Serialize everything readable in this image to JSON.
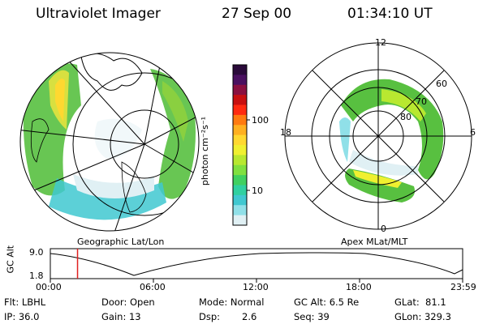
{
  "header": {
    "title": "Ultraviolet Imager",
    "date": "27 Sep 00",
    "time": "01:34:10 UT"
  },
  "geo_map": {
    "caption": "Geographic Lat/Lon"
  },
  "colorbar": {
    "unit_label": "photon cm⁻²s⁻¹",
    "ticks": [
      "100",
      "10"
    ],
    "colors": [
      "#2a0a3a",
      "#4a1060",
      "#8a1040",
      "#c81010",
      "#ff2a10",
      "#ff7a10",
      "#ffb020",
      "#ffd830",
      "#f0f030",
      "#b8e830",
      "#80e040",
      "#40d060",
      "#30d0a0",
      "#40c8d0",
      "#90e0e8",
      "#e0f0f4"
    ]
  },
  "polar": {
    "caption": "Apex MLat/MLT",
    "mlt_labels": {
      "top": "12",
      "right": "6",
      "bottom": "0",
      "left": "18"
    },
    "lat_labels": [
      "60",
      "70",
      "80"
    ]
  },
  "timeline": {
    "ylabel": "GC Alt",
    "y_ticks": [
      "9.0",
      "1.8"
    ],
    "x_ticks": [
      "00:00",
      "06:00",
      "12:00",
      "18:00",
      "23:59"
    ],
    "current_time_fraction": 0.066
  },
  "info": {
    "flt": "Flt: LBHL",
    "ip": "IP: 36.0",
    "door": "Door: Open",
    "gain": "Gain: 13",
    "mode": "Mode: Normal",
    "dsp_label": "Dsp:",
    "dsp_value": "2.6",
    "gc_alt": "GC Alt: 6.5 Re",
    "seq": "Seq: 39",
    "glat": "GLat:  81.1",
    "glon": "GLon: 329.3"
  }
}
